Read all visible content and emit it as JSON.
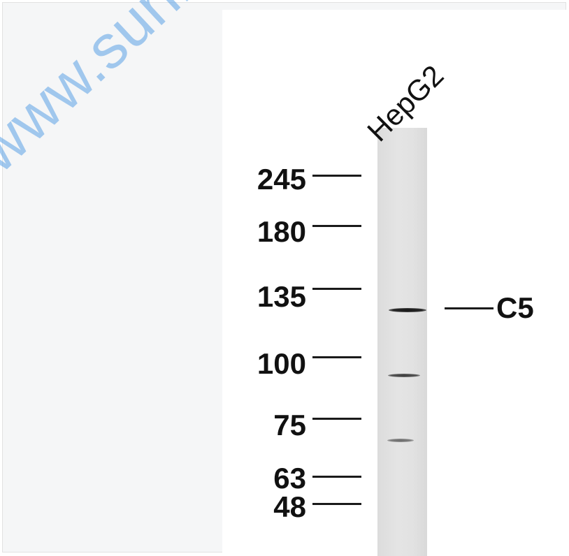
{
  "watermark": "www.sunlong",
  "lane_label": "HepG2",
  "markers": [
    {
      "label": "245"
    },
    {
      "label": "180"
    },
    {
      "label": "135"
    },
    {
      "label": "100"
    },
    {
      "label": "75"
    },
    {
      "label": "63"
    },
    {
      "label": "48"
    }
  ],
  "target": {
    "label": "C5"
  },
  "colors": {
    "watermark": "#5aa0e6",
    "lane": "#e0e0e0",
    "text": "#111111",
    "background": "#f5f6f7"
  }
}
